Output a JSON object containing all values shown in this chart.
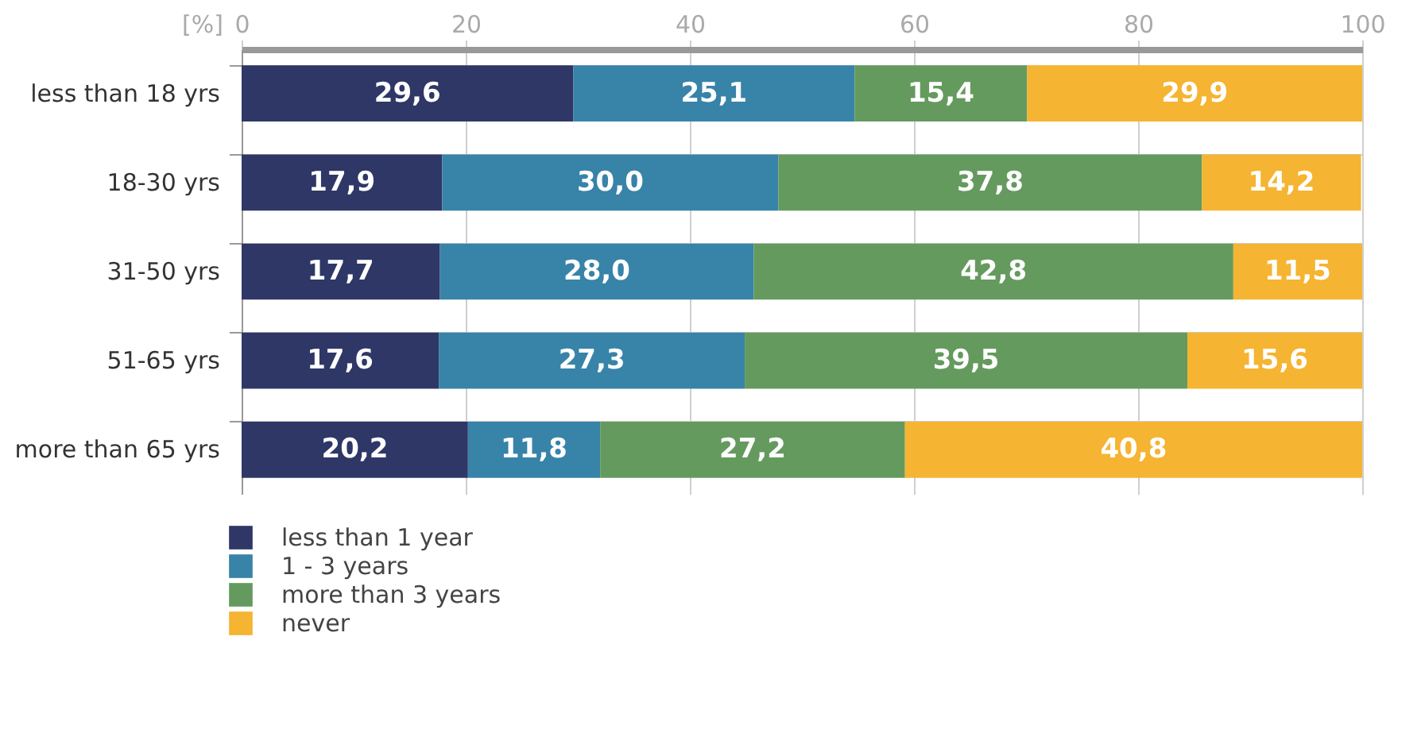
{
  "chart_data": {
    "type": "bar",
    "orientation": "horizontal",
    "stacked": true,
    "xlabel": "[%]",
    "categories": [
      "less than 18 yrs",
      "18-30 yrs",
      "31-50 yrs",
      "51-65 yrs",
      "more than 65 yrs"
    ],
    "series": [
      {
        "name": "less than 1 year",
        "color": "#2e3766",
        "values": [
          29.6,
          17.9,
          17.7,
          17.6,
          20.2
        ],
        "value_labels": [
          "29,6",
          "17,9",
          "17,7",
          "17,6",
          "20,2"
        ]
      },
      {
        "name": "1 - 3 years",
        "color": "#3883a8",
        "values": [
          25.1,
          30.0,
          28.0,
          27.3,
          11.8
        ],
        "value_labels": [
          "25,1",
          "30,0",
          "28,0",
          "27,3",
          "11,8"
        ]
      },
      {
        "name": "more than 3 years",
        "color": "#659a5e",
        "values": [
          15.4,
          37.8,
          42.8,
          39.5,
          27.2
        ],
        "value_labels": [
          "15,4",
          "37,8",
          "42,8",
          "39,5",
          "27,2"
        ]
      },
      {
        "name": "never",
        "color": "#f5b431",
        "values": [
          29.9,
          14.2,
          11.5,
          15.6,
          40.8
        ],
        "value_labels": [
          "29,9",
          "14,2",
          "11,5",
          "15,6",
          "40,8"
        ]
      }
    ],
    "xlim": [
      0,
      100
    ],
    "xticks": [
      0,
      20,
      40,
      60,
      80,
      100
    ],
    "grid": true,
    "legend": "bottom left"
  }
}
